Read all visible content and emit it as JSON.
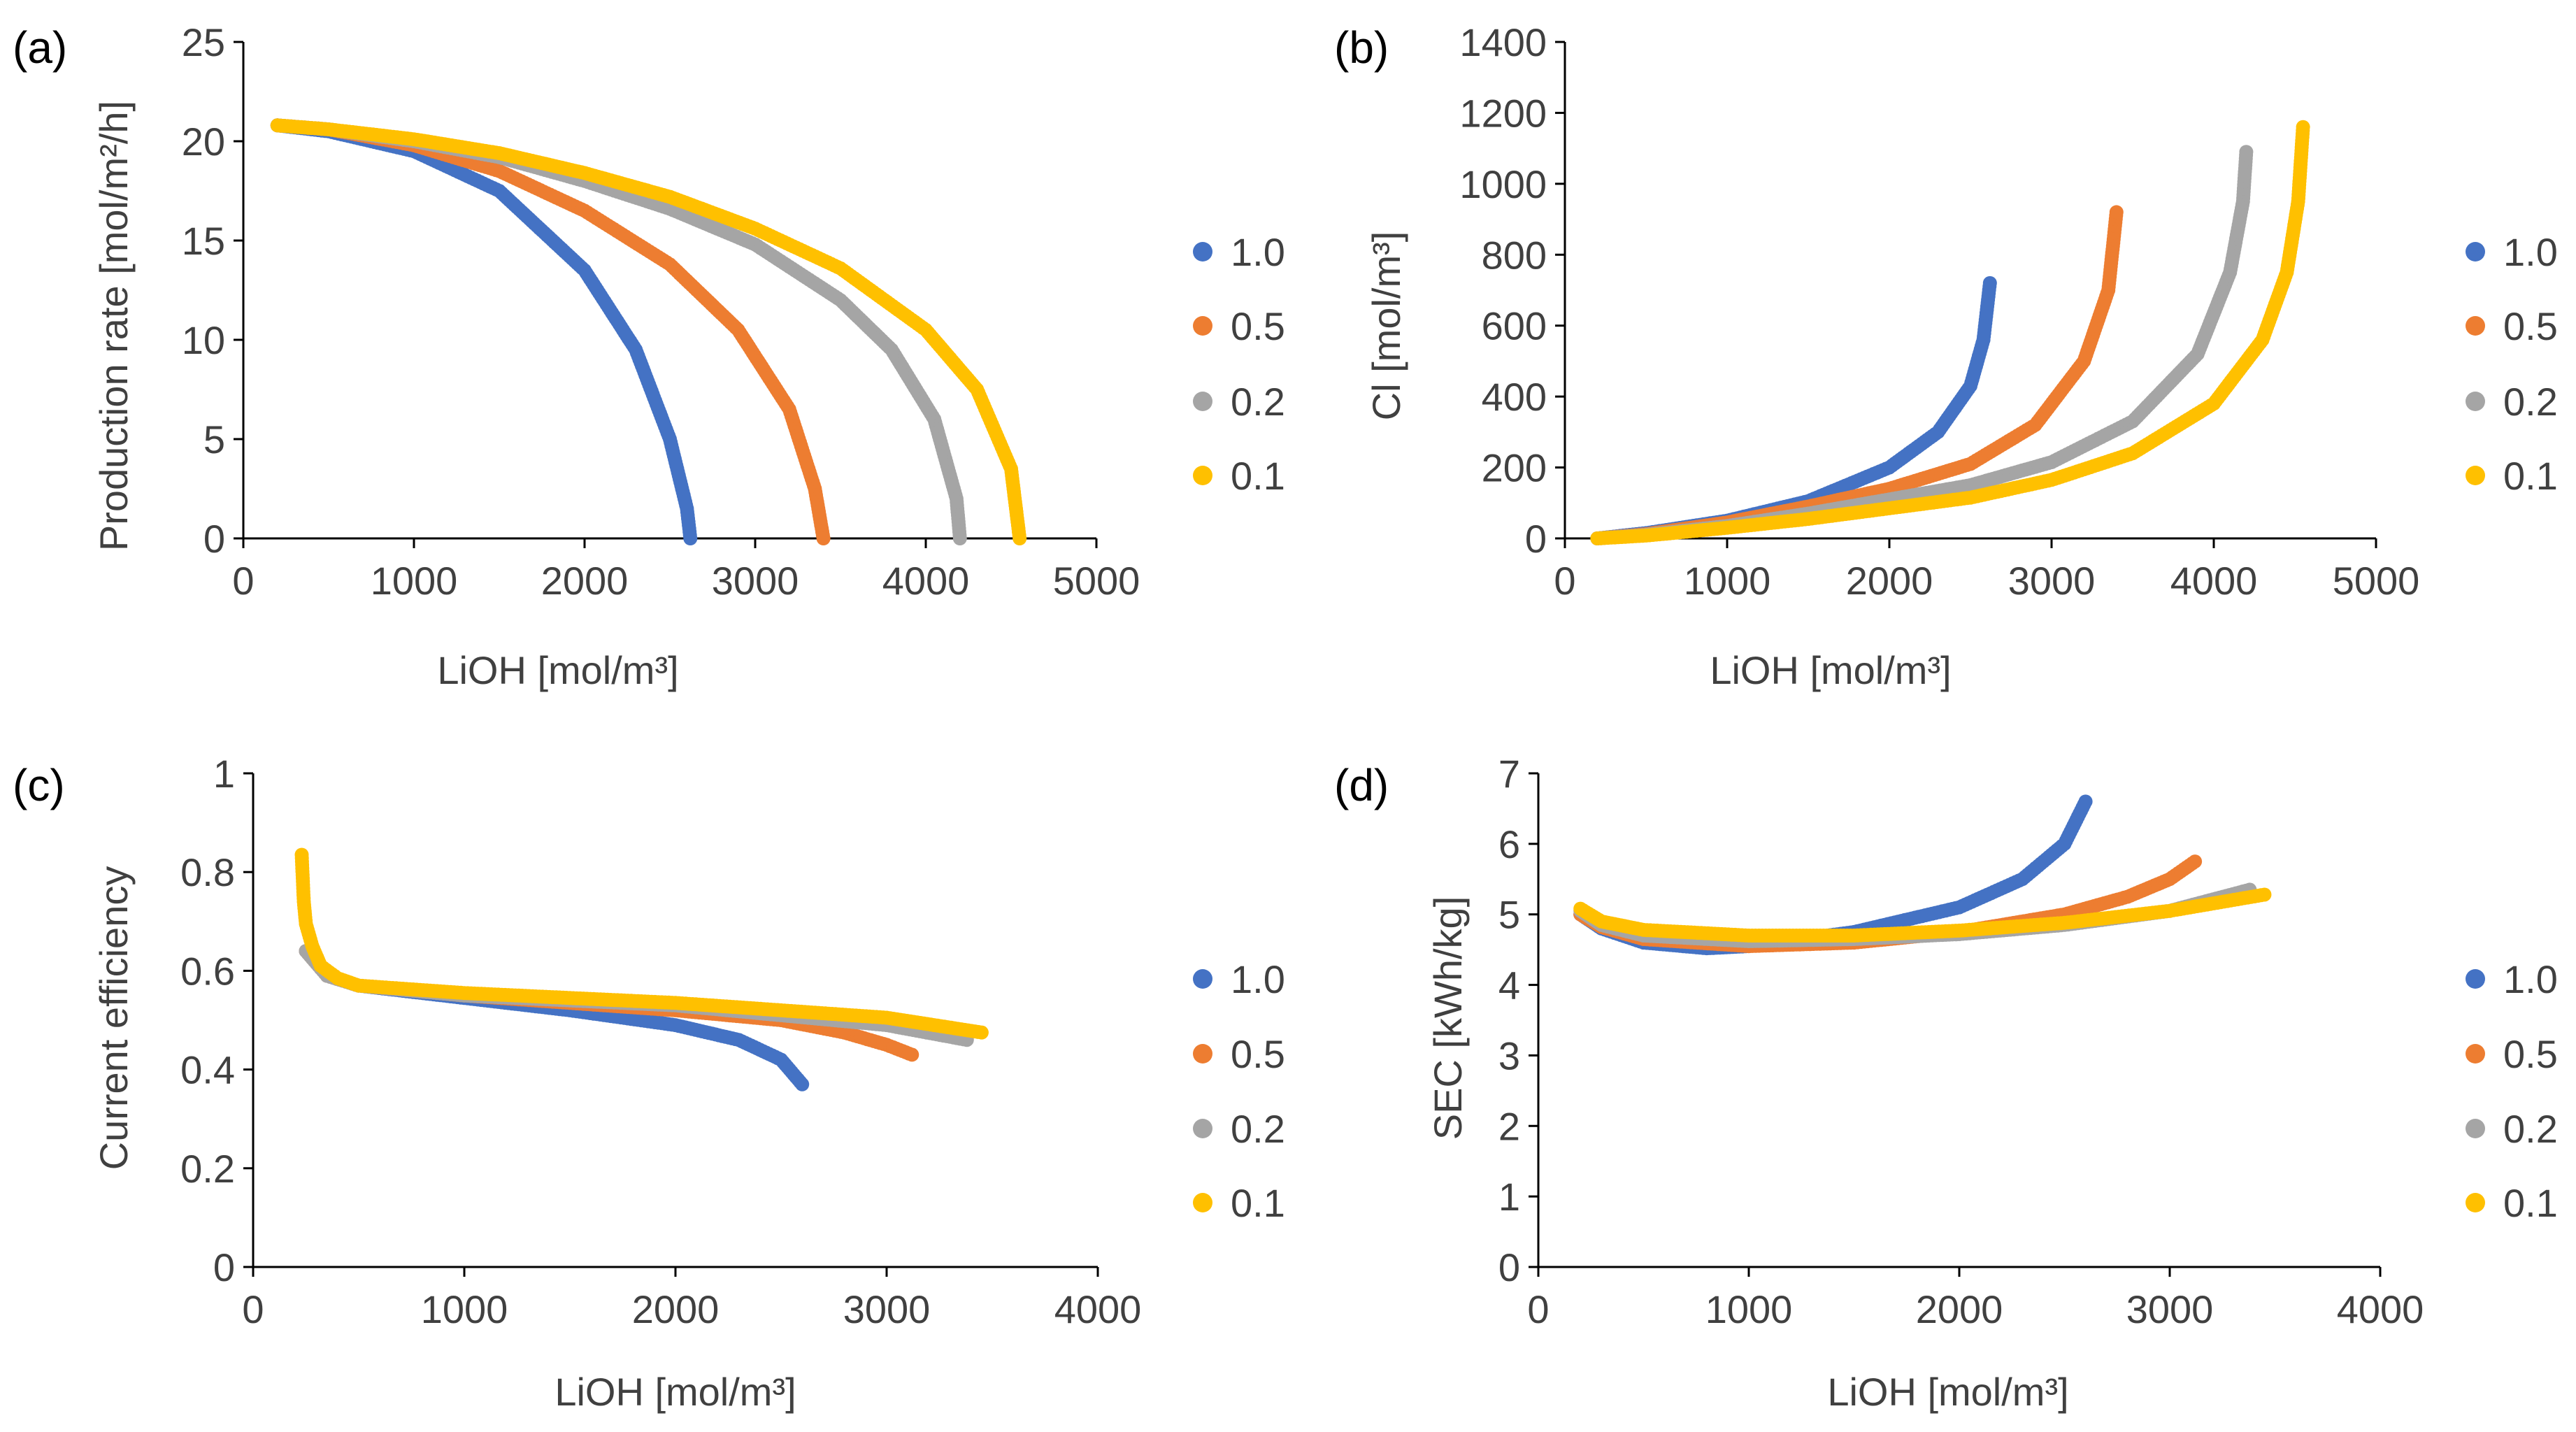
{
  "chart_data": [
    {
      "type": "scatter",
      "panel_label": "(a)",
      "xlabel": "LiOH [mol/m³]",
      "ylabel": "Production rate [mol/m²/h]",
      "xlim": [
        0,
        5000
      ],
      "ylim": [
        0,
        25
      ],
      "xticks": [
        0,
        1000,
        2000,
        3000,
        4000,
        5000
      ],
      "yticks": [
        0,
        5,
        10,
        15,
        20,
        25
      ],
      "series": [
        {
          "name": "1.0",
          "color": "#4472C4",
          "x": [
            200,
            500,
            1000,
            1500,
            2000,
            2300,
            2500,
            2600,
            2620
          ],
          "y": [
            20.8,
            20.5,
            19.5,
            17.5,
            13.5,
            9.5,
            5.0,
            1.5,
            0
          ]
        },
        {
          "name": "0.5",
          "color": "#ED7D31",
          "x": [
            200,
            500,
            1000,
            1500,
            2000,
            2500,
            2900,
            3200,
            3350,
            3400
          ],
          "y": [
            20.8,
            20.6,
            19.8,
            18.5,
            16.5,
            13.8,
            10.5,
            6.5,
            2.5,
            0
          ]
        },
        {
          "name": "0.2",
          "color": "#A5A5A5",
          "x": [
            200,
            500,
            1000,
            1500,
            2000,
            2500,
            3000,
            3500,
            3800,
            4050,
            4180,
            4200
          ],
          "y": [
            20.8,
            20.6,
            20.0,
            19.2,
            18.0,
            16.6,
            14.8,
            12.0,
            9.5,
            6.0,
            2.0,
            0
          ]
        },
        {
          "name": "0.1",
          "color": "#FFC000",
          "x": [
            200,
            500,
            1000,
            1500,
            2000,
            2500,
            3000,
            3500,
            4000,
            4300,
            4500,
            4550
          ],
          "y": [
            20.8,
            20.6,
            20.1,
            19.4,
            18.4,
            17.2,
            15.6,
            13.6,
            10.5,
            7.5,
            3.5,
            0
          ]
        }
      ],
      "legend": [
        "1.0",
        "0.5",
        "0.2",
        "0.1"
      ]
    },
    {
      "type": "scatter",
      "panel_label": "(b)",
      "xlabel": "LiOH [mol/m³]",
      "ylabel": "Cl [mol/m³]",
      "xlim": [
        0,
        5000
      ],
      "ylim": [
        0,
        1400
      ],
      "xticks": [
        0,
        1000,
        2000,
        3000,
        4000,
        5000
      ],
      "yticks": [
        0,
        200,
        400,
        600,
        800,
        1000,
        1200,
        1400
      ],
      "series": [
        {
          "name": "1.0",
          "color": "#4472C4",
          "x": [
            200,
            500,
            1000,
            1500,
            2000,
            2300,
            2500,
            2580,
            2620
          ],
          "y": [
            0,
            15,
            50,
            105,
            200,
            300,
            430,
            560,
            720
          ]
        },
        {
          "name": "0.5",
          "color": "#ED7D31",
          "x": [
            200,
            500,
            1000,
            1500,
            2000,
            2500,
            2900,
            3200,
            3350,
            3400
          ],
          "y": [
            0,
            12,
            45,
            90,
            140,
            210,
            320,
            500,
            700,
            920
          ]
        },
        {
          "name": "0.2",
          "color": "#A5A5A5",
          "x": [
            200,
            500,
            1000,
            1500,
            2000,
            2500,
            3000,
            3500,
            3900,
            4100,
            4180,
            4200
          ],
          "y": [
            0,
            10,
            35,
            70,
            110,
            150,
            215,
            330,
            520,
            750,
            950,
            1090
          ]
        },
        {
          "name": "0.1",
          "color": "#FFC000",
          "x": [
            200,
            500,
            1000,
            1500,
            2000,
            2500,
            3000,
            3500,
            4000,
            4300,
            4450,
            4520,
            4550
          ],
          "y": [
            0,
            8,
            30,
            55,
            85,
            115,
            165,
            240,
            380,
            560,
            750,
            950,
            1160
          ]
        }
      ],
      "legend": [
        "1.0",
        "0.5",
        "0.2",
        "0.1"
      ]
    },
    {
      "type": "scatter",
      "panel_label": "(c)",
      "xlabel": "LiOH [mol/m³]",
      "ylabel": "Current efficiency",
      "xlim": [
        0,
        4000
      ],
      "ylim": [
        0,
        1
      ],
      "xticks": [
        0,
        1000,
        2000,
        3000,
        4000
      ],
      "yticks": [
        0,
        0.2,
        0.4,
        0.6,
        0.8,
        1
      ],
      "series": [
        {
          "name": "1.0",
          "color": "#4472C4",
          "x": [
            250,
            350,
            500,
            1000,
            1500,
            2000,
            2300,
            2500,
            2600
          ],
          "y": [
            0.64,
            0.59,
            0.57,
            0.545,
            0.52,
            0.49,
            0.46,
            0.42,
            0.37
          ]
        },
        {
          "name": "0.5",
          "color": "#ED7D31",
          "x": [
            250,
            350,
            500,
            1000,
            1500,
            2000,
            2500,
            2800,
            3000,
            3120
          ],
          "y": [
            0.64,
            0.59,
            0.57,
            0.55,
            0.535,
            0.52,
            0.5,
            0.475,
            0.45,
            0.43
          ]
        },
        {
          "name": "0.2",
          "color": "#A5A5A5",
          "x": [
            250,
            350,
            500,
            1000,
            1500,
            2000,
            2500,
            3000,
            3380
          ],
          "y": [
            0.64,
            0.59,
            0.57,
            0.55,
            0.54,
            0.53,
            0.51,
            0.49,
            0.46
          ]
        },
        {
          "name": "0.1",
          "color": "#FFC000",
          "x": [
            230,
            240,
            250,
            280,
            320,
            400,
            500,
            1000,
            1500,
            2000,
            2500,
            3000,
            3450
          ],
          "y": [
            0.835,
            0.74,
            0.695,
            0.65,
            0.61,
            0.585,
            0.57,
            0.555,
            0.545,
            0.535,
            0.52,
            0.505,
            0.475
          ]
        }
      ],
      "legend": [
        "1.0",
        "0.5",
        "0.2",
        "0.1"
      ]
    },
    {
      "type": "scatter",
      "panel_label": "(d)",
      "xlabel": "LiOH [mol/m³]",
      "ylabel": "SEC [kWh/kg]",
      "xlim": [
        0,
        4000
      ],
      "ylim": [
        0,
        7
      ],
      "xticks": [
        0,
        1000,
        2000,
        3000,
        4000
      ],
      "yticks": [
        0,
        1,
        2,
        3,
        4,
        5,
        6,
        7
      ],
      "series": [
        {
          "name": "1.0",
          "color": "#4472C4",
          "x": [
            200,
            300,
            500,
            800,
            1000,
            1500,
            2000,
            2300,
            2500,
            2600
          ],
          "y": [
            5.0,
            4.8,
            4.6,
            4.52,
            4.55,
            4.75,
            5.1,
            5.5,
            6.0,
            6.6
          ]
        },
        {
          "name": "0.5",
          "color": "#ED7D31",
          "x": [
            200,
            300,
            500,
            1000,
            1500,
            2000,
            2500,
            2800,
            3000,
            3120
          ],
          "y": [
            5.0,
            4.82,
            4.65,
            4.55,
            4.6,
            4.75,
            5.0,
            5.25,
            5.5,
            5.75
          ]
        },
        {
          "name": "0.2",
          "color": "#A5A5A5",
          "x": [
            200,
            300,
            500,
            1000,
            1500,
            2000,
            2500,
            3000,
            3380
          ],
          "y": [
            5.05,
            4.85,
            4.7,
            4.62,
            4.65,
            4.72,
            4.85,
            5.05,
            5.35
          ]
        },
        {
          "name": "0.1",
          "color": "#FFC000",
          "x": [
            200,
            300,
            500,
            1000,
            1500,
            2000,
            2500,
            3000,
            3450
          ],
          "y": [
            5.08,
            4.9,
            4.78,
            4.7,
            4.7,
            4.77,
            4.88,
            5.05,
            5.28
          ]
        }
      ],
      "legend": [
        "1.0",
        "0.5",
        "0.2",
        "0.1"
      ]
    }
  ]
}
